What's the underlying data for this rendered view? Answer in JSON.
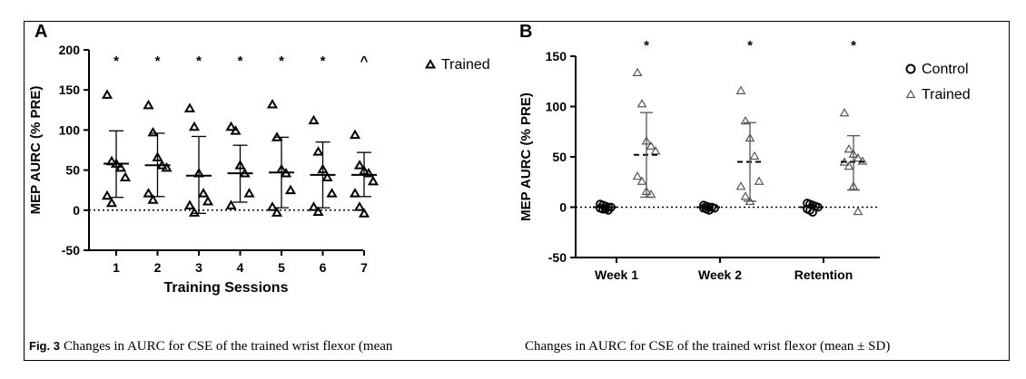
{
  "caption": {
    "fig_label": "Fig. 3",
    "left_text": "Changes in AURC for CSE of the trained wrist flexor (mean",
    "right_text": "Changes in AURC for CSE of the trained wrist flexor (mean ± SD)"
  },
  "colors": {
    "ink": "#000000",
    "panel_b_markers": "#555555"
  },
  "chart_data": [
    {
      "panel": "A",
      "type": "scatter",
      "xlabel": "Training Sessions",
      "ylabel": "MEP AURC (% PRE)",
      "categories": [
        "1",
        "2",
        "3",
        "4",
        "5",
        "6",
        "7"
      ],
      "ylim": [
        -50,
        200
      ],
      "yticks": [
        -50,
        0,
        50,
        100,
        150,
        200
      ],
      "reference_line": 0,
      "legend": [
        {
          "name": "Trained",
          "marker": "triangle"
        }
      ],
      "legend_position": "top-right",
      "significance": [
        "*",
        "*",
        "*",
        "*",
        "*",
        "*",
        "^"
      ],
      "series": [
        {
          "name": "Trained",
          "marker": "triangle",
          "points": [
            [
              143,
              60,
              57,
              52,
              40,
              17,
              8
            ],
            [
              130,
              96,
              65,
              55,
              52,
              20,
              12
            ],
            [
              126,
              103,
              45,
              20,
              10,
              5,
              -4
            ],
            [
              103,
              98,
              55,
              45,
              20,
              5
            ],
            [
              131,
              90,
              50,
              45,
              24,
              3,
              -4
            ],
            [
              111,
              72,
              50,
              40,
              20,
              3,
              -3
            ],
            [
              93,
              55,
              48,
              45,
              35,
              20,
              3,
              -5
            ]
          ],
          "mean": [
            58,
            56,
            43,
            46,
            47,
            44,
            44
          ],
          "sd_low": [
            16,
            17,
            -4,
            10,
            3,
            3,
            17
          ],
          "sd_high": [
            99,
            96,
            92,
            81,
            91,
            85,
            72
          ]
        }
      ]
    },
    {
      "panel": "B",
      "type": "scatter",
      "ylabel": "MEP AURC (% PRE)",
      "categories": [
        "Week 1",
        "Week 2",
        "Retention"
      ],
      "ylim": [
        -50,
        150
      ],
      "yticks": [
        -50,
        0,
        50,
        100,
        150
      ],
      "reference_line": 0,
      "legend": [
        {
          "name": "Control",
          "marker": "circle"
        },
        {
          "name": "Trained",
          "marker": "triangle"
        }
      ],
      "legend_position": "top-right",
      "significance": [
        "*",
        "*",
        "*"
      ],
      "series": [
        {
          "name": "Control",
          "marker": "circle",
          "points": [
            [
              3,
              2,
              1,
              0,
              0,
              -1,
              -2,
              -2,
              -3
            ],
            [
              2,
              1,
              0,
              0,
              -1,
              -1,
              -2,
              -3
            ],
            [
              4,
              3,
              2,
              1,
              0,
              -2,
              -3,
              -5
            ]
          ],
          "mean": [
            0,
            0,
            0
          ]
        },
        {
          "name": "Trained",
          "marker": "triangle",
          "points": [
            [
              133,
              102,
              65,
              60,
              55,
              30,
              25,
              15,
              12
            ],
            [
              115,
              85,
              68,
              50,
              25,
              20,
              10,
              5
            ],
            [
              93,
              57,
              52,
              48,
              45,
              44,
              40,
              20,
              -5
            ]
          ],
          "mean": [
            52,
            45,
            45
          ],
          "sd_low": [
            10,
            6,
            17
          ],
          "sd_high": [
            94,
            84,
            71
          ]
        }
      ]
    }
  ]
}
